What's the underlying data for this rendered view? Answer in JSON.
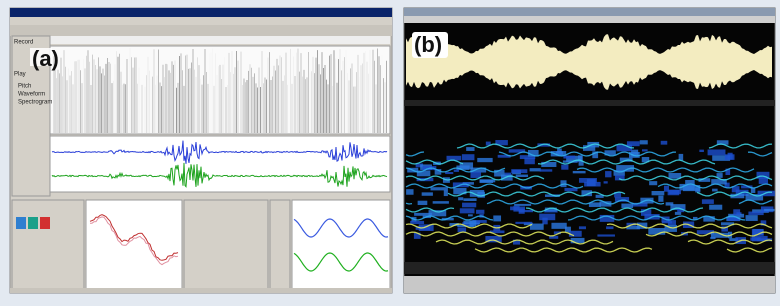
{
  "panels": [
    {
      "label": "(a)"
    },
    {
      "label": "(b)"
    }
  ],
  "sidebar": [
    "Record",
    "Play"
  ],
  "views": [
    "Pitch",
    "Waveform",
    "Spectrogram"
  ]
}
